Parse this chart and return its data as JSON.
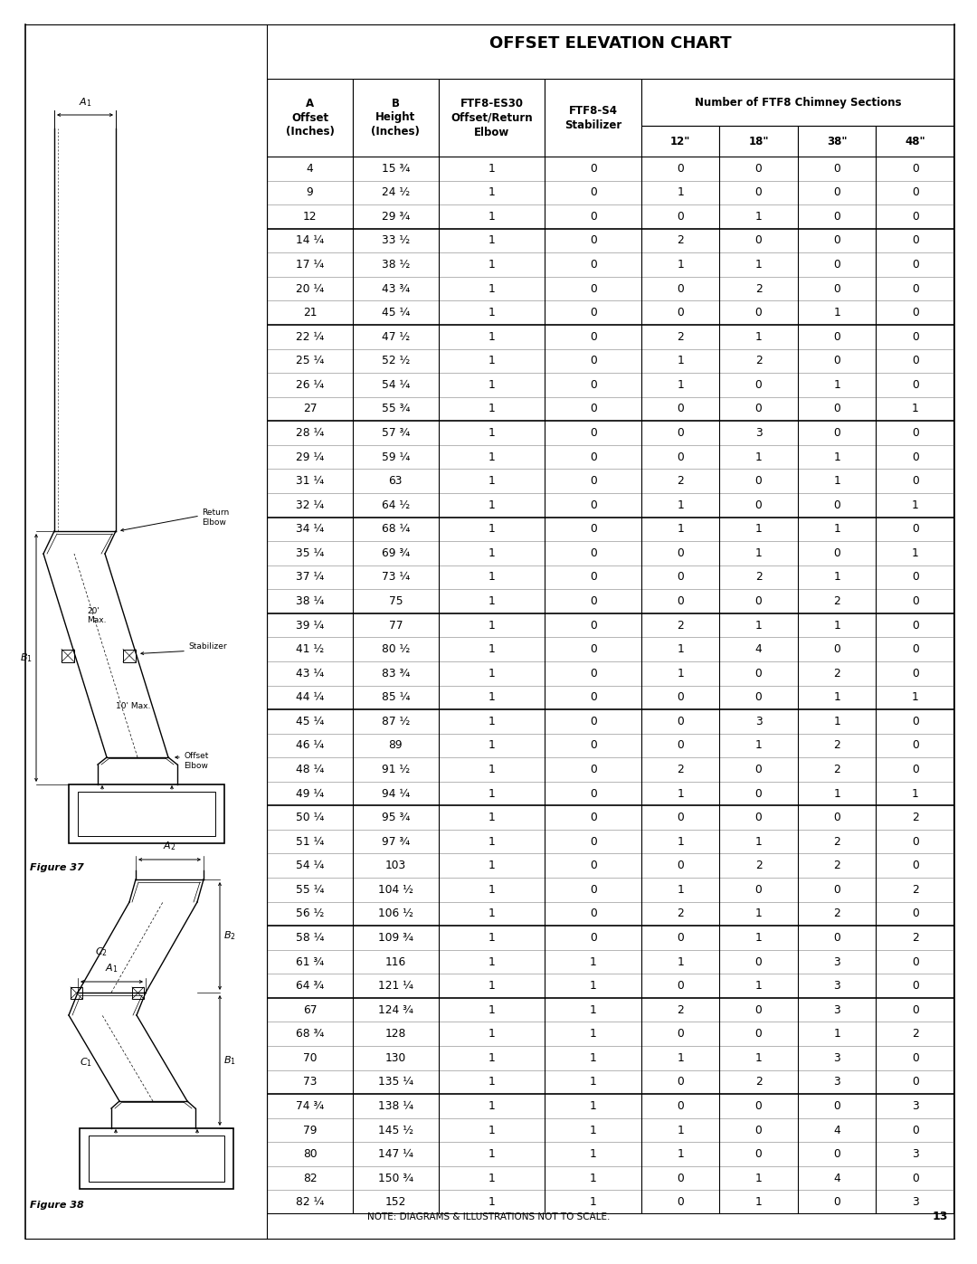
{
  "title": "OFFSET ELEVATION CHART",
  "rows": [
    [
      "4",
      "15 ¾",
      "1",
      "0",
      "0",
      "0",
      "0",
      "0"
    ],
    [
      "9",
      "24 ½",
      "1",
      "0",
      "1",
      "0",
      "0",
      "0"
    ],
    [
      "12",
      "29 ¾",
      "1",
      "0",
      "0",
      "1",
      "0",
      "0"
    ],
    [
      "14 ¼",
      "33 ½",
      "1",
      "0",
      "2",
      "0",
      "0",
      "0"
    ],
    [
      "17 ¼",
      "38 ½",
      "1",
      "0",
      "1",
      "1",
      "0",
      "0"
    ],
    [
      "20 ¼",
      "43 ¾",
      "1",
      "0",
      "0",
      "2",
      "0",
      "0"
    ],
    [
      "21",
      "45 ¼",
      "1",
      "0",
      "0",
      "0",
      "1",
      "0"
    ],
    [
      "22 ¼",
      "47 ½",
      "1",
      "0",
      "2",
      "1",
      "0",
      "0"
    ],
    [
      "25 ¼",
      "52 ½",
      "1",
      "0",
      "1",
      "2",
      "0",
      "0"
    ],
    [
      "26 ¼",
      "54 ¼",
      "1",
      "0",
      "1",
      "0",
      "1",
      "0"
    ],
    [
      "27",
      "55 ¾",
      "1",
      "0",
      "0",
      "0",
      "0",
      "1"
    ],
    [
      "28 ¼",
      "57 ¾",
      "1",
      "0",
      "0",
      "3",
      "0",
      "0"
    ],
    [
      "29 ¼",
      "59 ¼",
      "1",
      "0",
      "0",
      "1",
      "1",
      "0"
    ],
    [
      "31 ¼",
      "63",
      "1",
      "0",
      "2",
      "0",
      "1",
      "0"
    ],
    [
      "32 ¼",
      "64 ½",
      "1",
      "0",
      "1",
      "0",
      "0",
      "1"
    ],
    [
      "34 ¼",
      "68 ¼",
      "1",
      "0",
      "1",
      "1",
      "1",
      "0"
    ],
    [
      "35 ¼",
      "69 ¾",
      "1",
      "0",
      "0",
      "1",
      "0",
      "1"
    ],
    [
      "37 ¼",
      "73 ¼",
      "1",
      "0",
      "0",
      "2",
      "1",
      "0"
    ],
    [
      "38 ¼",
      "75",
      "1",
      "0",
      "0",
      "0",
      "2",
      "0"
    ],
    [
      "39 ¼",
      "77",
      "1",
      "0",
      "2",
      "1",
      "1",
      "0"
    ],
    [
      "41 ½",
      "80 ½",
      "1",
      "0",
      "1",
      "4",
      "0",
      "0"
    ],
    [
      "43 ¼",
      "83 ¾",
      "1",
      "0",
      "1",
      "0",
      "2",
      "0"
    ],
    [
      "44 ¼",
      "85 ¼",
      "1",
      "0",
      "0",
      "0",
      "1",
      "1"
    ],
    [
      "45 ¼",
      "87 ½",
      "1",
      "0",
      "0",
      "3",
      "1",
      "0"
    ],
    [
      "46 ¼",
      "89",
      "1",
      "0",
      "0",
      "1",
      "2",
      "0"
    ],
    [
      "48 ¼",
      "91 ½",
      "1",
      "0",
      "2",
      "0",
      "2",
      "0"
    ],
    [
      "49 ¼",
      "94 ¼",
      "1",
      "0",
      "1",
      "0",
      "1",
      "1"
    ],
    [
      "50 ¼",
      "95 ¾",
      "1",
      "0",
      "0",
      "0",
      "0",
      "2"
    ],
    [
      "51 ¼",
      "97 ¾",
      "1",
      "0",
      "1",
      "1",
      "2",
      "0"
    ],
    [
      "54 ¼",
      "103",
      "1",
      "0",
      "0",
      "2",
      "2",
      "0"
    ],
    [
      "55 ¼",
      "104 ½",
      "1",
      "0",
      "1",
      "0",
      "0",
      "2"
    ],
    [
      "56 ½",
      "106 ½",
      "1",
      "0",
      "2",
      "1",
      "2",
      "0"
    ],
    [
      "58 ¼",
      "109 ¾",
      "1",
      "0",
      "0",
      "1",
      "0",
      "2"
    ],
    [
      "61 ¾",
      "116",
      "1",
      "1",
      "1",
      "0",
      "3",
      "0"
    ],
    [
      "64 ¾",
      "121 ¼",
      "1",
      "1",
      "0",
      "1",
      "3",
      "0"
    ],
    [
      "67",
      "124 ¾",
      "1",
      "1",
      "2",
      "0",
      "3",
      "0"
    ],
    [
      "68 ¾",
      "128",
      "1",
      "1",
      "0",
      "0",
      "1",
      "2"
    ],
    [
      "70",
      "130",
      "1",
      "1",
      "1",
      "1",
      "3",
      "0"
    ],
    [
      "73",
      "135 ¼",
      "1",
      "1",
      "0",
      "2",
      "3",
      "0"
    ],
    [
      "74 ¾",
      "138 ¼",
      "1",
      "1",
      "0",
      "0",
      "0",
      "3"
    ],
    [
      "79",
      "145 ½",
      "1",
      "1",
      "1",
      "0",
      "4",
      "0"
    ],
    [
      "80",
      "147 ¼",
      "1",
      "1",
      "1",
      "0",
      "0",
      "3"
    ],
    [
      "82",
      "150 ¾",
      "1",
      "1",
      "0",
      "1",
      "4",
      "0"
    ],
    [
      "82 ¼",
      "152",
      "1",
      "1",
      "0",
      "1",
      "0",
      "3"
    ]
  ],
  "group_separators": [
    3,
    7,
    11,
    15,
    19,
    23,
    27,
    32,
    35,
    39
  ],
  "background_color": "#ffffff",
  "note_text": "NOTE: DIAGRAMS & ILLUSTRATIONS NOT TO SCALE.",
  "page_number": "13"
}
